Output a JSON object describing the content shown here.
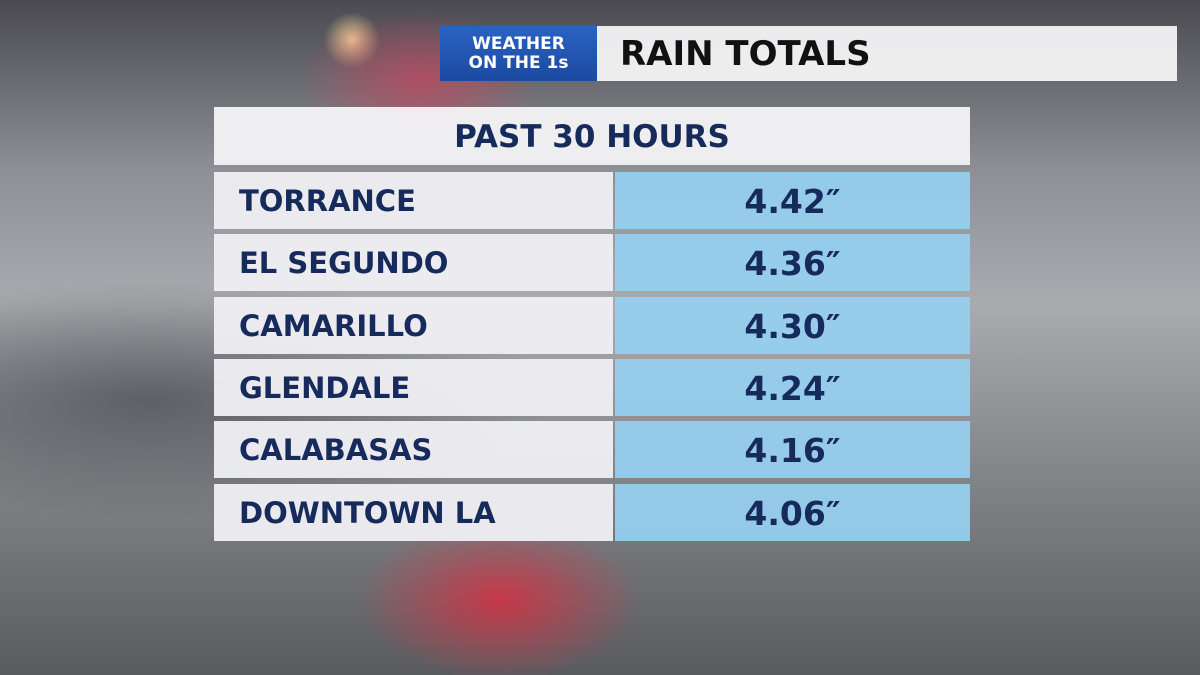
{
  "header": {
    "badge": [
      "WEATHER",
      "ON THE 1s"
    ],
    "title": "RAIN TOTALS"
  },
  "table": {
    "title": "PAST 30 HOURS",
    "rows": [
      [
        "TORRANCE",
        "4.42″"
      ],
      [
        "EL SEGUNDO",
        "4.36″"
      ],
      [
        "CAMARILLO",
        "4.30″"
      ],
      [
        "GLENDALE",
        "4.24″"
      ],
      [
        "CALABASAS",
        "4.16″"
      ],
      [
        "DOWNTOWN LA",
        "4.06″"
      ]
    ]
  }
}
